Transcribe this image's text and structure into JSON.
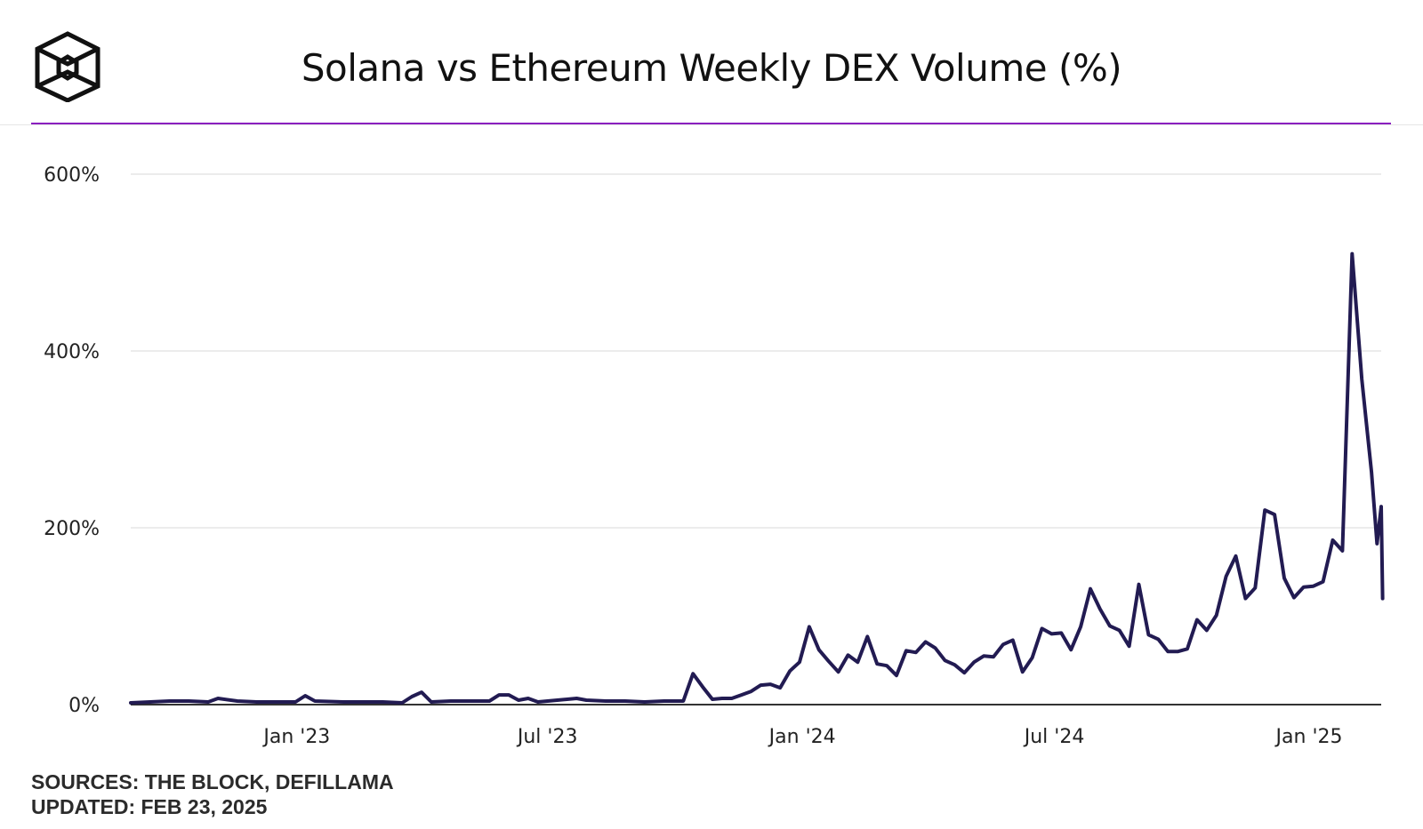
{
  "header": {
    "title": "Solana vs Ethereum Weekly DEX Volume (%)",
    "logo_icon": "the-block-cube-icon",
    "accent_color": "#8a1fbf"
  },
  "footer": {
    "sources": "SOURCES: THE BLOCK, DEFILLAMA",
    "updated": "UPDATED: FEB 23, 2025"
  },
  "chart_data": {
    "type": "line",
    "title": "Solana vs Ethereum Weekly DEX Volume (%)",
    "xlabel": "",
    "ylabel": "",
    "x_tick_labels": [
      {
        "date": "2023-01-01",
        "label": "Jan '23"
      },
      {
        "date": "2023-07-01",
        "label": "Jul '23"
      },
      {
        "date": "2024-01-01",
        "label": "Jan '24"
      },
      {
        "date": "2024-07-01",
        "label": "Jul '24"
      },
      {
        "date": "2025-01-01",
        "label": "Jan '25"
      }
    ],
    "y_ticks": [
      0,
      200,
      400,
      600
    ],
    "y_tick_labels": [
      "0%",
      "200%",
      "400%",
      "600%"
    ],
    "ylim": [
      0,
      600
    ],
    "xlim": [
      "2022-09-03",
      "2025-02-22"
    ],
    "grid": true,
    "line_color": "#221b52",
    "series": [
      {
        "points": [
          [
            "2022-09-03",
            2
          ],
          [
            "2022-09-17",
            3
          ],
          [
            "2022-10-01",
            4
          ],
          [
            "2022-10-15",
            4
          ],
          [
            "2022-10-29",
            3
          ],
          [
            "2022-11-05",
            7
          ],
          [
            "2022-11-19",
            4
          ],
          [
            "2022-12-03",
            3
          ],
          [
            "2022-12-17",
            3
          ],
          [
            "2022-12-31",
            3
          ],
          [
            "2023-01-07",
            10
          ],
          [
            "2023-01-14",
            4
          ],
          [
            "2023-02-04",
            3
          ],
          [
            "2023-02-18",
            3
          ],
          [
            "2023-03-04",
            3
          ],
          [
            "2023-03-18",
            2
          ],
          [
            "2023-03-25",
            9
          ],
          [
            "2023-04-01",
            14
          ],
          [
            "2023-04-08",
            3
          ],
          [
            "2023-04-22",
            4
          ],
          [
            "2023-05-06",
            4
          ],
          [
            "2023-05-20",
            4
          ],
          [
            "2023-05-27",
            11
          ],
          [
            "2023-06-03",
            11
          ],
          [
            "2023-06-10",
            5
          ],
          [
            "2023-06-17",
            7
          ],
          [
            "2023-06-24",
            3
          ],
          [
            "2023-07-08",
            5
          ],
          [
            "2023-07-22",
            7
          ],
          [
            "2023-07-29",
            5
          ],
          [
            "2023-08-12",
            4
          ],
          [
            "2023-08-26",
            4
          ],
          [
            "2023-09-09",
            3
          ],
          [
            "2023-09-23",
            4
          ],
          [
            "2023-10-07",
            4
          ],
          [
            "2023-10-14",
            35
          ],
          [
            "2023-10-21",
            20
          ],
          [
            "2023-10-28",
            6
          ],
          [
            "2023-11-04",
            7
          ],
          [
            "2023-11-11",
            7
          ],
          [
            "2023-11-18",
            11
          ],
          [
            "2023-11-25",
            15
          ],
          [
            "2023-12-02",
            22
          ],
          [
            "2023-12-09",
            23
          ],
          [
            "2023-12-16",
            19
          ],
          [
            "2023-12-23",
            38
          ],
          [
            "2023-12-30",
            48
          ],
          [
            "2024-01-06",
            88
          ],
          [
            "2024-01-13",
            62
          ],
          [
            "2024-01-20",
            49
          ],
          [
            "2024-01-27",
            37
          ],
          [
            "2024-02-03",
            56
          ],
          [
            "2024-02-10",
            48
          ],
          [
            "2024-02-17",
            77
          ],
          [
            "2024-02-24",
            46
          ],
          [
            "2024-03-02",
            44
          ],
          [
            "2024-03-09",
            33
          ],
          [
            "2024-03-16",
            61
          ],
          [
            "2024-03-23",
            59
          ],
          [
            "2024-03-30",
            71
          ],
          [
            "2024-04-06",
            64
          ],
          [
            "2024-04-13",
            50
          ],
          [
            "2024-04-20",
            45
          ],
          [
            "2024-04-27",
            36
          ],
          [
            "2024-05-04",
            48
          ],
          [
            "2024-05-11",
            55
          ],
          [
            "2024-05-18",
            54
          ],
          [
            "2024-05-25",
            68
          ],
          [
            "2024-06-01",
            73
          ],
          [
            "2024-06-08",
            37
          ],
          [
            "2024-06-15",
            53
          ],
          [
            "2024-06-22",
            86
          ],
          [
            "2024-06-29",
            80
          ],
          [
            "2024-07-06",
            81
          ],
          [
            "2024-07-13",
            62
          ],
          [
            "2024-07-20",
            88
          ],
          [
            "2024-07-27",
            131
          ],
          [
            "2024-08-03",
            108
          ],
          [
            "2024-08-10",
            89
          ],
          [
            "2024-08-17",
            84
          ],
          [
            "2024-08-24",
            66
          ],
          [
            "2024-08-31",
            136
          ],
          [
            "2024-09-07",
            79
          ],
          [
            "2024-09-14",
            74
          ],
          [
            "2024-09-21",
            60
          ],
          [
            "2024-09-28",
            60
          ],
          [
            "2024-10-05",
            63
          ],
          [
            "2024-10-12",
            96
          ],
          [
            "2024-10-19",
            84
          ],
          [
            "2024-10-26",
            101
          ],
          [
            "2024-11-02",
            145
          ],
          [
            "2024-11-09",
            168
          ],
          [
            "2024-11-16",
            120
          ],
          [
            "2024-11-23",
            132
          ],
          [
            "2024-11-30",
            220
          ],
          [
            "2024-12-07",
            215
          ],
          [
            "2024-12-14",
            143
          ],
          [
            "2024-12-21",
            121
          ],
          [
            "2024-12-28",
            133
          ],
          [
            "2025-01-04",
            134
          ],
          [
            "2025-01-11",
            139
          ],
          [
            "2025-01-18",
            186
          ],
          [
            "2025-01-25",
            174
          ],
          [
            "2025-02-01",
            510
          ],
          [
            "2025-02-08",
            368
          ],
          [
            "2025-02-15",
            263
          ],
          [
            "2025-02-19",
            182
          ],
          [
            "2025-02-22",
            224
          ],
          [
            "2025-02-23",
            120
          ]
        ]
      }
    ]
  }
}
